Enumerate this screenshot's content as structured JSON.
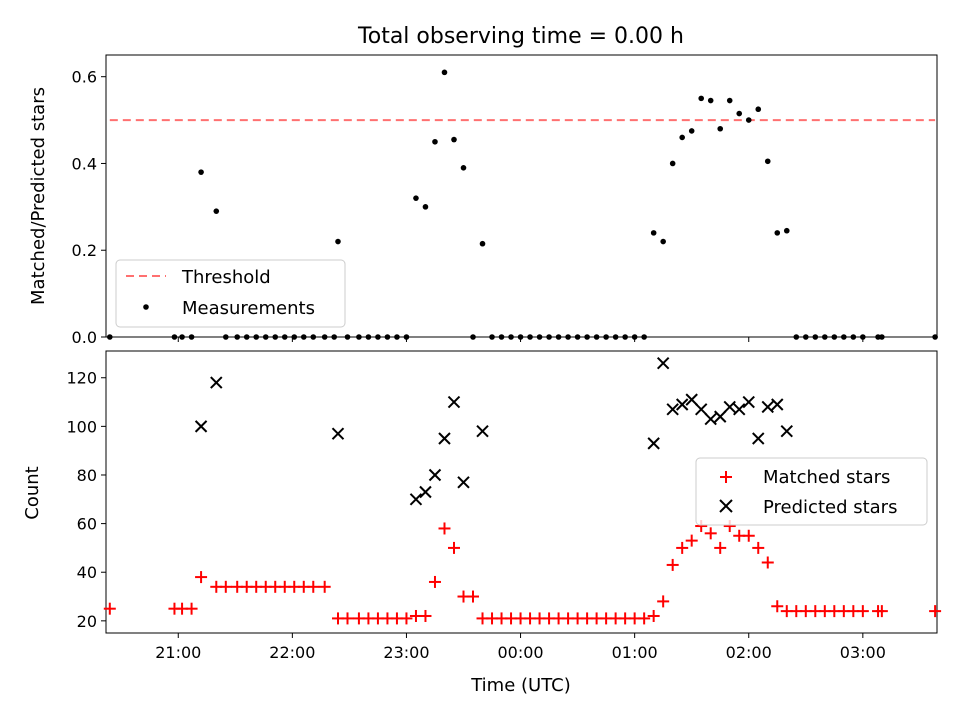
{
  "chart_data": [
    {
      "type": "scatter",
      "title": "Total observing time = 0.00 h",
      "xlabel": "",
      "ylabel": "Matched/Predicted stars",
      "ylim": [
        0,
        0.65
      ],
      "yticks": [
        "0.0",
        "0.2",
        "0.4",
        "0.6"
      ],
      "legend_position": "lower-left",
      "threshold": {
        "name": "Threshold",
        "value": 0.5,
        "x_start": "20:24",
        "x_end": "03:38",
        "color": "#ff7070"
      },
      "series": [
        {
          "name": "Measurements",
          "color": "#000000",
          "points": [
            [
              "20:24",
              0
            ],
            [
              "20:58",
              0
            ],
            [
              "21:02",
              0
            ],
            [
              "21:07",
              0
            ],
            [
              "21:12",
              0.38
            ],
            [
              "21:20",
              0.29
            ],
            [
              "21:25",
              0
            ],
            [
              "21:31",
              0
            ],
            [
              "21:36",
              0
            ],
            [
              "21:41",
              0
            ],
            [
              "21:46",
              0
            ],
            [
              "21:51",
              0
            ],
            [
              "21:56",
              0
            ],
            [
              "22:01",
              0
            ],
            [
              "22:06",
              0
            ],
            [
              "22:11",
              0
            ],
            [
              "22:17",
              0
            ],
            [
              "22:22",
              0
            ],
            [
              "22:24",
              0.22
            ],
            [
              "22:29",
              0
            ],
            [
              "22:35",
              0
            ],
            [
              "22:40",
              0
            ],
            [
              "22:45",
              0
            ],
            [
              "22:50",
              0
            ],
            [
              "22:55",
              0
            ],
            [
              "23:00",
              0
            ],
            [
              "23:05",
              0.32
            ],
            [
              "23:10",
              0.3
            ],
            [
              "23:15",
              0.45
            ],
            [
              "23:20",
              0.61
            ],
            [
              "23:25",
              0.455
            ],
            [
              "23:30",
              0.39
            ],
            [
              "23:35",
              0
            ],
            [
              "23:40",
              0.215
            ],
            [
              "23:45",
              0
            ],
            [
              "23:50",
              0
            ],
            [
              "23:55",
              0
            ],
            [
              "00:00",
              0
            ],
            [
              "00:05",
              0
            ],
            [
              "00:10",
              0
            ],
            [
              "00:15",
              0
            ],
            [
              "00:20",
              0
            ],
            [
              "00:25",
              0
            ],
            [
              "00:30",
              0
            ],
            [
              "00:35",
              0
            ],
            [
              "00:40",
              0
            ],
            [
              "00:45",
              0
            ],
            [
              "00:50",
              0
            ],
            [
              "00:55",
              0
            ],
            [
              "01:00",
              0
            ],
            [
              "01:05",
              0
            ],
            [
              "01:10",
              0.24
            ],
            [
              "01:15",
              0.22
            ],
            [
              "01:20",
              0.4
            ],
            [
              "01:25",
              0.46
            ],
            [
              "01:30",
              0.475
            ],
            [
              "01:35",
              0.55
            ],
            [
              "01:40",
              0.545
            ],
            [
              "01:45",
              0.48
            ],
            [
              "01:50",
              0.545
            ],
            [
              "01:55",
              0.515
            ],
            [
              "02:00",
              0.5
            ],
            [
              "02:05",
              0.525
            ],
            [
              "02:10",
              0.405
            ],
            [
              "02:15",
              0.24
            ],
            [
              "02:20",
              0.245
            ],
            [
              "02:25",
              0
            ],
            [
              "02:30",
              0
            ],
            [
              "02:35",
              0
            ],
            [
              "02:40",
              0
            ],
            [
              "02:45",
              0
            ],
            [
              "02:50",
              0
            ],
            [
              "02:55",
              0
            ],
            [
              "03:00",
              0
            ],
            [
              "03:08",
              0
            ],
            [
              "03:10",
              0
            ],
            [
              "03:38",
              0
            ]
          ]
        }
      ]
    },
    {
      "type": "scatter",
      "title": "",
      "xlabel": "Time (UTC)",
      "ylabel": "Count",
      "ylim": [
        15,
        131
      ],
      "yticks": [
        "20",
        "40",
        "60",
        "80",
        "100",
        "120"
      ],
      "xticks": [
        "21:00",
        "22:00",
        "23:00",
        "00:00",
        "01:00",
        "02:00",
        "03:00"
      ],
      "legend_position": "center-right",
      "series": [
        {
          "name": "Matched stars",
          "marker": "plus",
          "color": "#ff0000",
          "points": [
            [
              "20:24",
              25
            ],
            [
              "20:58",
              25
            ],
            [
              "21:02",
              25
            ],
            [
              "21:07",
              25
            ],
            [
              "21:12",
              38
            ],
            [
              "21:20",
              34
            ],
            [
              "21:25",
              34
            ],
            [
              "21:31",
              34
            ],
            [
              "21:36",
              34
            ],
            [
              "21:41",
              34
            ],
            [
              "21:46",
              34
            ],
            [
              "21:51",
              34
            ],
            [
              "21:56",
              34
            ],
            [
              "22:01",
              34
            ],
            [
              "22:06",
              34
            ],
            [
              "22:11",
              34
            ],
            [
              "22:17",
              34
            ],
            [
              "22:24",
              21
            ],
            [
              "22:29",
              21
            ],
            [
              "22:35",
              21
            ],
            [
              "22:40",
              21
            ],
            [
              "22:45",
              21
            ],
            [
              "22:50",
              21
            ],
            [
              "22:55",
              21
            ],
            [
              "23:00",
              21
            ],
            [
              "23:05",
              22
            ],
            [
              "23:10",
              22
            ],
            [
              "23:15",
              36
            ],
            [
              "23:20",
              58
            ],
            [
              "23:25",
              50
            ],
            [
              "23:30",
              30
            ],
            [
              "23:35",
              30
            ],
            [
              "23:40",
              21
            ],
            [
              "23:45",
              21
            ],
            [
              "23:50",
              21
            ],
            [
              "23:55",
              21
            ],
            [
              "00:00",
              21
            ],
            [
              "00:05",
              21
            ],
            [
              "00:10",
              21
            ],
            [
              "00:15",
              21
            ],
            [
              "00:20",
              21
            ],
            [
              "00:25",
              21
            ],
            [
              "00:30",
              21
            ],
            [
              "00:35",
              21
            ],
            [
              "00:40",
              21
            ],
            [
              "00:45",
              21
            ],
            [
              "00:50",
              21
            ],
            [
              "00:55",
              21
            ],
            [
              "01:00",
              21
            ],
            [
              "01:05",
              21
            ],
            [
              "01:10",
              22
            ],
            [
              "01:15",
              28
            ],
            [
              "01:20",
              43
            ],
            [
              "01:25",
              50
            ],
            [
              "01:30",
              53
            ],
            [
              "01:35",
              59
            ],
            [
              "01:40",
              56
            ],
            [
              "01:45",
              50
            ],
            [
              "01:50",
              59
            ],
            [
              "01:55",
              55
            ],
            [
              "02:00",
              55
            ],
            [
              "02:05",
              50
            ],
            [
              "02:10",
              44
            ],
            [
              "02:15",
              26
            ],
            [
              "02:20",
              24
            ],
            [
              "02:25",
              24
            ],
            [
              "02:30",
              24
            ],
            [
              "02:35",
              24
            ],
            [
              "02:40",
              24
            ],
            [
              "02:45",
              24
            ],
            [
              "02:50",
              24
            ],
            [
              "02:55",
              24
            ],
            [
              "03:00",
              24
            ],
            [
              "03:08",
              24
            ],
            [
              "03:10",
              24
            ],
            [
              "03:38",
              24
            ]
          ]
        },
        {
          "name": "Predicted stars",
          "marker": "x",
          "color": "#000000",
          "points": [
            [
              "21:12",
              100
            ],
            [
              "21:20",
              118
            ],
            [
              "22:24",
              97
            ],
            [
              "23:05",
              70
            ],
            [
              "23:10",
              73
            ],
            [
              "23:15",
              80
            ],
            [
              "23:20",
              95
            ],
            [
              "23:25",
              110
            ],
            [
              "23:30",
              77
            ],
            [
              "23:40",
              98
            ],
            [
              "01:10",
              93
            ],
            [
              "01:15",
              126
            ],
            [
              "01:20",
              107
            ],
            [
              "01:25",
              109
            ],
            [
              "01:30",
              111
            ],
            [
              "01:35",
              107
            ],
            [
              "01:40",
              103
            ],
            [
              "01:45",
              104
            ],
            [
              "01:50",
              108
            ],
            [
              "01:55",
              107
            ],
            [
              "02:00",
              110
            ],
            [
              "02:05",
              95
            ],
            [
              "02:10",
              108
            ],
            [
              "02:15",
              109
            ],
            [
              "02:20",
              98
            ]
          ]
        }
      ]
    }
  ]
}
